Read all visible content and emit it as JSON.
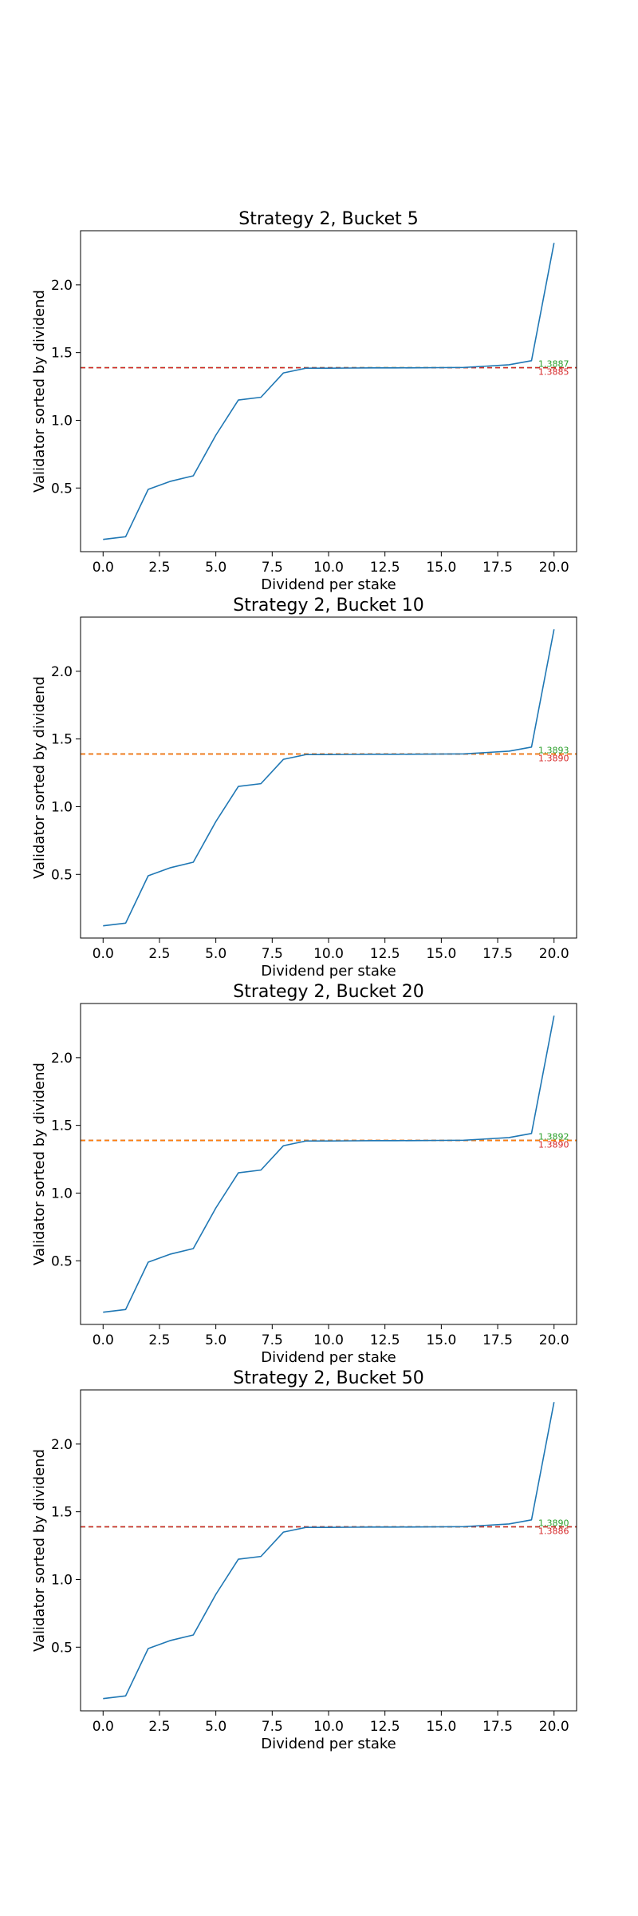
{
  "colors": {
    "series": "#1f77b4",
    "ref_green": "#2ca02c",
    "ref_red": "#d62728",
    "ref_orange": "#ff7f0e",
    "axes": "#000000",
    "background": "#ffffff"
  },
  "chart_data": [
    {
      "type": "line",
      "title": "Strategy 2, Bucket 5",
      "xlabel": "Dividend per stake",
      "ylabel": "Validator sorted by dividend",
      "xlim": [
        -1,
        21
      ],
      "ylim": [
        0.03,
        2.4
      ],
      "xticks": [
        0.0,
        2.5,
        5.0,
        7.5,
        10.0,
        12.5,
        15.0,
        17.5,
        20.0
      ],
      "xtick_labels": [
        "0.0",
        "2.5",
        "5.0",
        "7.5",
        "10.0",
        "12.5",
        "15.0",
        "17.5",
        "20.0"
      ],
      "yticks": [
        0.5,
        1.0,
        1.5,
        2.0
      ],
      "ytick_labels": [
        "0.5",
        "1.0",
        "1.5",
        "2.0"
      ],
      "grid": false,
      "series": [
        {
          "x": [
            0,
            1,
            2,
            3,
            4,
            5,
            6,
            7,
            8,
            9,
            10,
            11,
            12,
            13,
            14,
            15,
            16,
            17,
            18,
            19,
            20
          ],
          "values": [
            0.12,
            0.14,
            0.49,
            0.55,
            0.59,
            0.89,
            1.15,
            1.17,
            1.35,
            1.385,
            1.385,
            1.386,
            1.387,
            1.387,
            1.388,
            1.389,
            1.39,
            1.4,
            1.41,
            1.44,
            2.31
          ]
        }
      ],
      "reference_lines": [
        {
          "value": 1.3887,
          "label": "1.3887",
          "color": "#2ca02c",
          "style": "dashed"
        },
        {
          "value": 1.3885,
          "label": "1.3885",
          "color": "#d62728",
          "style": "dashed"
        }
      ]
    },
    {
      "type": "line",
      "title": "Strategy 2, Bucket 10",
      "xlabel": "Dividend per stake",
      "ylabel": "Validator sorted by dividend",
      "xlim": [
        -1,
        21
      ],
      "ylim": [
        0.03,
        2.4
      ],
      "xticks": [
        0.0,
        2.5,
        5.0,
        7.5,
        10.0,
        12.5,
        15.0,
        17.5,
        20.0
      ],
      "xtick_labels": [
        "0.0",
        "2.5",
        "5.0",
        "7.5",
        "10.0",
        "12.5",
        "15.0",
        "17.5",
        "20.0"
      ],
      "yticks": [
        0.5,
        1.0,
        1.5,
        2.0
      ],
      "ytick_labels": [
        "0.5",
        "1.0",
        "1.5",
        "2.0"
      ],
      "grid": false,
      "series": [
        {
          "x": [
            0,
            1,
            2,
            3,
            4,
            5,
            6,
            7,
            8,
            9,
            10,
            11,
            12,
            13,
            14,
            15,
            16,
            17,
            18,
            19,
            20
          ],
          "values": [
            0.12,
            0.14,
            0.49,
            0.55,
            0.59,
            0.89,
            1.15,
            1.17,
            1.35,
            1.385,
            1.385,
            1.386,
            1.387,
            1.387,
            1.388,
            1.389,
            1.39,
            1.4,
            1.41,
            1.44,
            2.31
          ]
        }
      ],
      "reference_lines": [
        {
          "value": 1.3893,
          "label": "1.3893",
          "color": "#2ca02c",
          "style": "dashed"
        },
        {
          "value": 1.389,
          "label": "1.3890",
          "color": "#d62728",
          "style": "dashed"
        },
        {
          "value": 1.3891,
          "label": "",
          "color": "#ff7f0e",
          "style": "dashed"
        }
      ]
    },
    {
      "type": "line",
      "title": "Strategy 2, Bucket 20",
      "xlabel": "Dividend per stake",
      "ylabel": "Validator sorted by dividend",
      "xlim": [
        -1,
        21
      ],
      "ylim": [
        0.03,
        2.4
      ],
      "xticks": [
        0.0,
        2.5,
        5.0,
        7.5,
        10.0,
        12.5,
        15.0,
        17.5,
        20.0
      ],
      "xtick_labels": [
        "0.0",
        "2.5",
        "5.0",
        "7.5",
        "10.0",
        "12.5",
        "15.0",
        "17.5",
        "20.0"
      ],
      "yticks": [
        0.5,
        1.0,
        1.5,
        2.0
      ],
      "ytick_labels": [
        "0.5",
        "1.0",
        "1.5",
        "2.0"
      ],
      "grid": false,
      "series": [
        {
          "x": [
            0,
            1,
            2,
            3,
            4,
            5,
            6,
            7,
            8,
            9,
            10,
            11,
            12,
            13,
            14,
            15,
            16,
            17,
            18,
            19,
            20
          ],
          "values": [
            0.12,
            0.14,
            0.49,
            0.55,
            0.59,
            0.89,
            1.15,
            1.17,
            1.35,
            1.385,
            1.385,
            1.386,
            1.387,
            1.387,
            1.388,
            1.389,
            1.39,
            1.4,
            1.41,
            1.44,
            2.31
          ]
        }
      ],
      "reference_lines": [
        {
          "value": 1.3892,
          "label": "1.3892",
          "color": "#2ca02c",
          "style": "dashed"
        },
        {
          "value": 1.389,
          "label": "1.3890",
          "color": "#d62728",
          "style": "dashed"
        },
        {
          "value": 1.3891,
          "label": "",
          "color": "#ff7f0e",
          "style": "dashed"
        }
      ]
    },
    {
      "type": "line",
      "title": "Strategy 2, Bucket 50",
      "xlabel": "Dividend per stake",
      "ylabel": "Validator sorted by dividend",
      "xlim": [
        -1,
        21
      ],
      "ylim": [
        0.03,
        2.4
      ],
      "xticks": [
        0.0,
        2.5,
        5.0,
        7.5,
        10.0,
        12.5,
        15.0,
        17.5,
        20.0
      ],
      "xtick_labels": [
        "0.0",
        "2.5",
        "5.0",
        "7.5",
        "10.0",
        "12.5",
        "15.0",
        "17.5",
        "20.0"
      ],
      "yticks": [
        0.5,
        1.0,
        1.5,
        2.0
      ],
      "ytick_labels": [
        "0.5",
        "1.0",
        "1.5",
        "2.0"
      ],
      "grid": false,
      "series": [
        {
          "x": [
            0,
            1,
            2,
            3,
            4,
            5,
            6,
            7,
            8,
            9,
            10,
            11,
            12,
            13,
            14,
            15,
            16,
            17,
            18,
            19,
            20
          ],
          "values": [
            0.12,
            0.14,
            0.49,
            0.55,
            0.59,
            0.89,
            1.15,
            1.17,
            1.35,
            1.385,
            1.385,
            1.386,
            1.387,
            1.387,
            1.388,
            1.389,
            1.39,
            1.4,
            1.41,
            1.44,
            2.31
          ]
        }
      ],
      "reference_lines": [
        {
          "value": 1.389,
          "label": "1.3890",
          "color": "#2ca02c",
          "style": "dashed"
        },
        {
          "value": 1.3886,
          "label": "1.3886",
          "color": "#d62728",
          "style": "dashed"
        }
      ]
    }
  ]
}
